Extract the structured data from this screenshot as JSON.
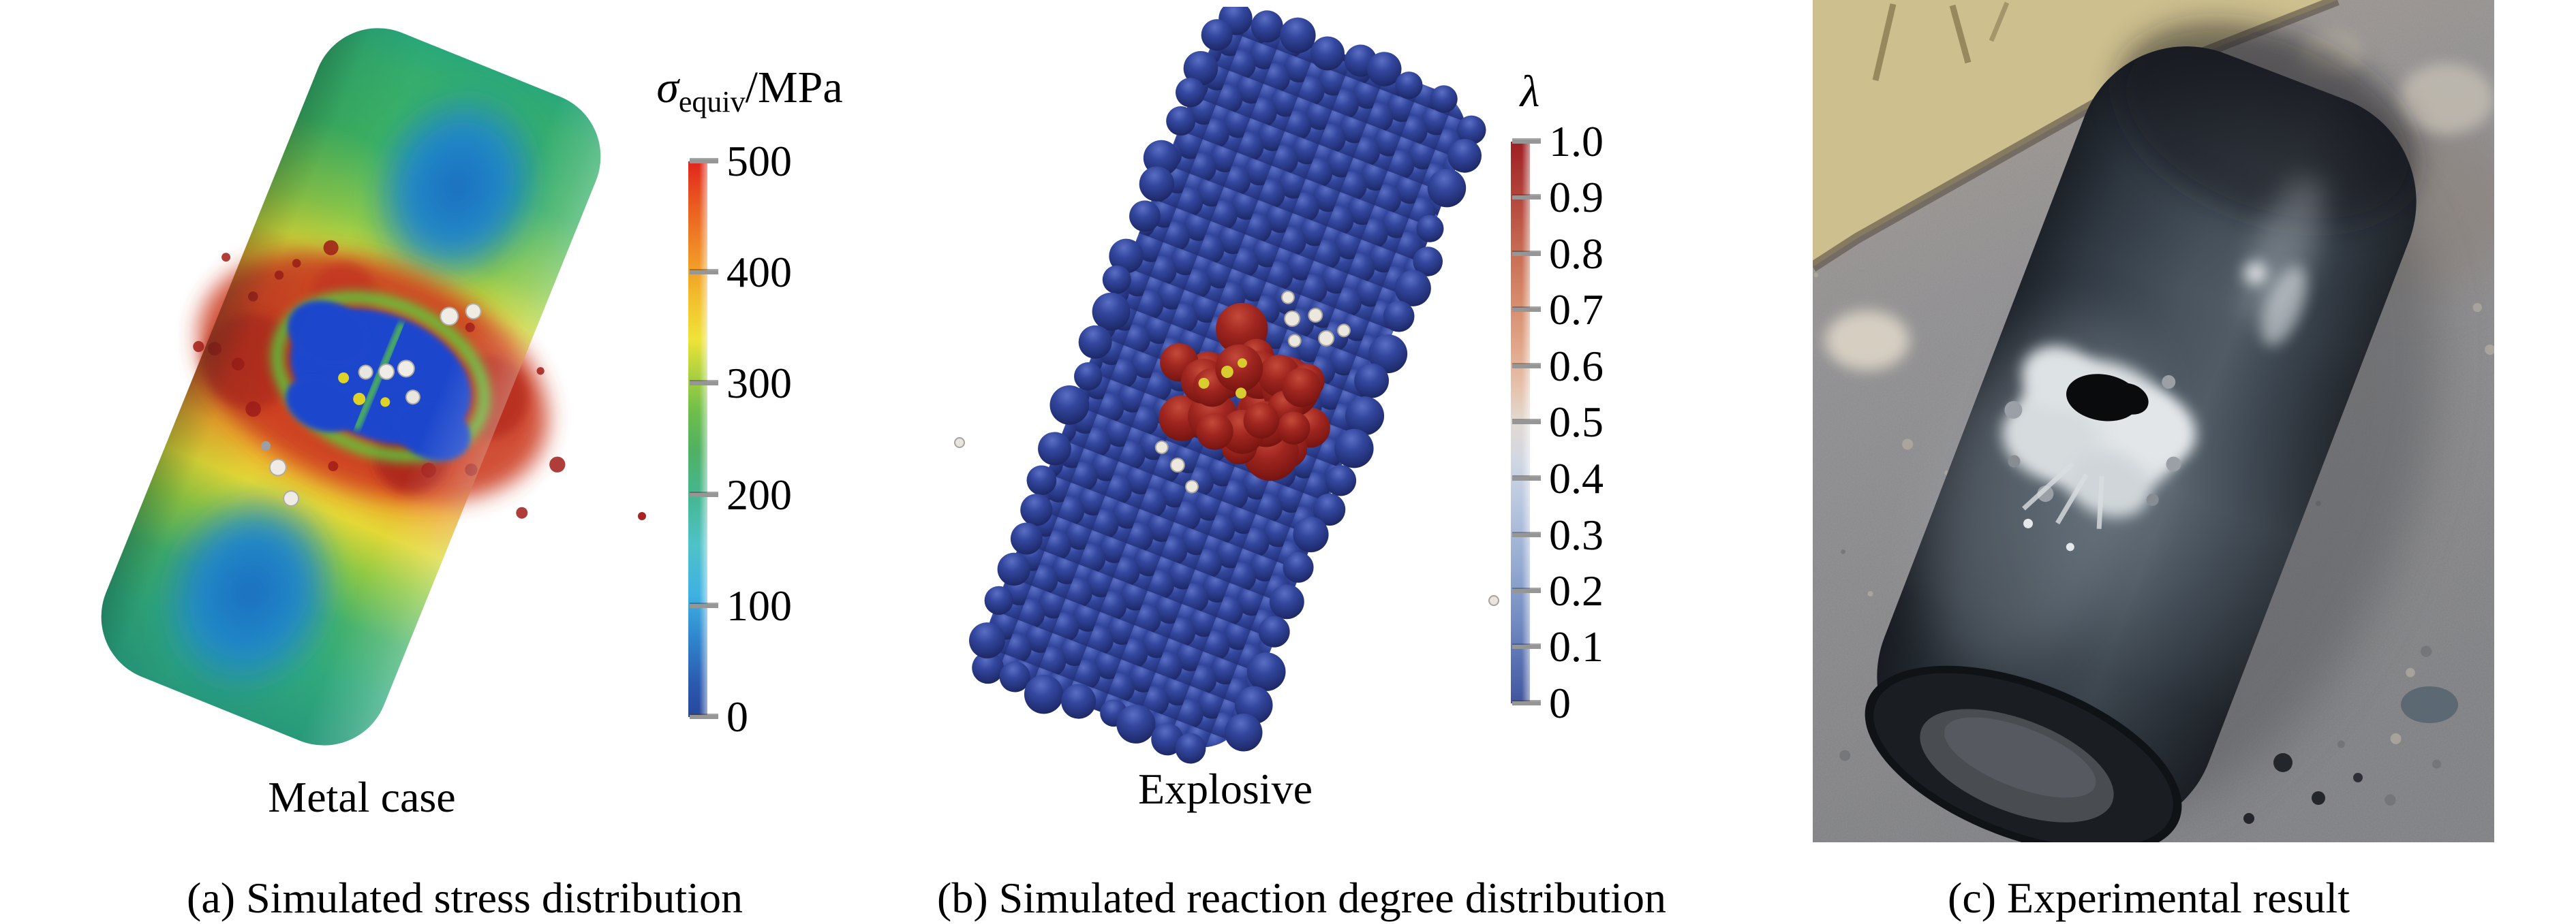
{
  "figure": {
    "panel_a": {
      "label": "Metal case",
      "caption": "(a) Simulated stress distribution",
      "colorbar": {
        "title_symbol": "σ",
        "title_subscript": "equiv",
        "title_suffix": "/MPa",
        "min": 0,
        "max": 500,
        "ticks": [
          "500",
          "400",
          "300",
          "200",
          "100",
          "0"
        ],
        "top_color": "#e1251b",
        "bottom_color": "#27479b"
      }
    },
    "panel_b": {
      "label": "Explosive",
      "caption": "(b) Simulated reaction degree distribution",
      "colorbar": {
        "title_symbol": "λ",
        "min": 0,
        "max": 1.0,
        "ticks": [
          "1.0",
          "0.9",
          "0.8",
          "0.7",
          "0.6",
          "0.5",
          "0.4",
          "0.3",
          "0.2",
          "0.1",
          "0"
        ],
        "top_color": "#9e2023",
        "bottom_color": "#41549e"
      },
      "unreacted_sphere_color": "#22307a",
      "reacted_sphere_color": "#9e1f1c"
    },
    "panel_c": {
      "caption": "(c) Experimental result"
    }
  }
}
